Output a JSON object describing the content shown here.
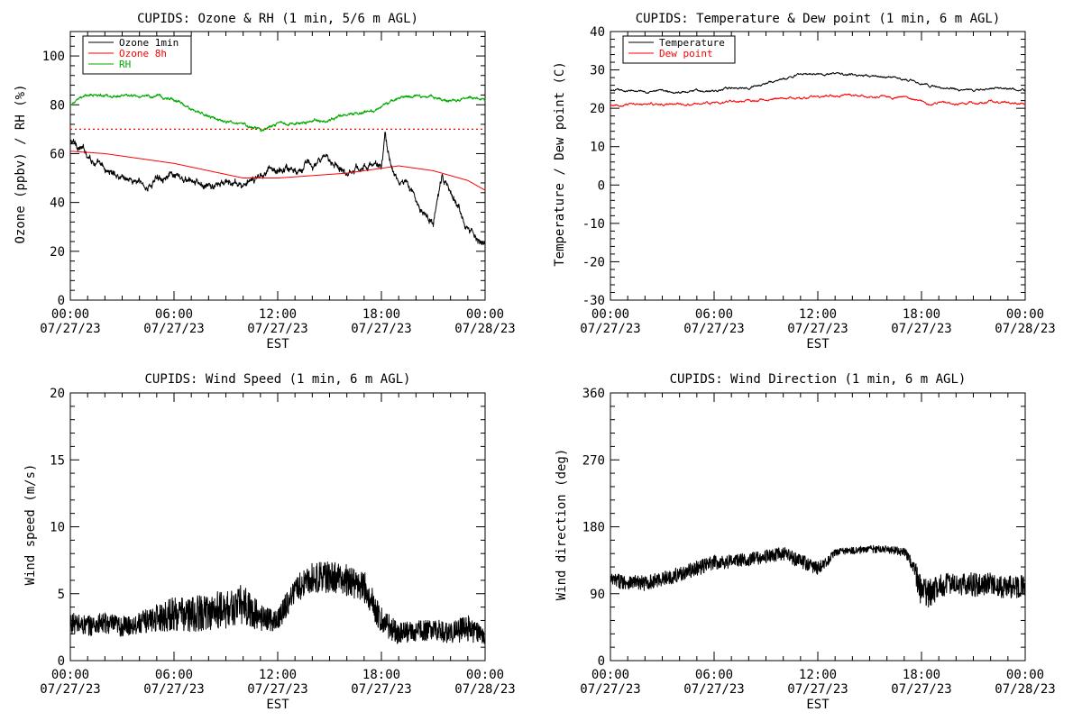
{
  "chart_data": [
    {
      "type": "line",
      "title": "CUPIDS: Ozone & RH (1 min, 5/6 m AGL)",
      "xlabel": "EST",
      "ylabel": "Ozone (ppbv) / RH (%)",
      "ylim": [
        0,
        110
      ],
      "yticks": [
        0,
        20,
        40,
        60,
        80,
        100
      ],
      "xticks": [
        {
          "time": "00:00",
          "date": "07/27/23"
        },
        {
          "time": "06:00",
          "date": "07/27/23"
        },
        {
          "time": "12:00",
          "date": "07/27/23"
        },
        {
          "time": "18:00",
          "date": "07/27/23"
        },
        {
          "time": "00:00",
          "date": "07/28/23"
        }
      ],
      "legend": "top-left",
      "reference_lines": [
        {
          "y": 70,
          "color": "#ff0000",
          "style": "dotted"
        }
      ],
      "series": [
        {
          "name": "Ozone 1min",
          "color": "#000000",
          "x": [
            0,
            0.5,
            1,
            1.5,
            2,
            3,
            4,
            4.5,
            5,
            5.5,
            6,
            7,
            8,
            9,
            10,
            10.5,
            11,
            11.5,
            12,
            12.5,
            13,
            13.5,
            14,
            15,
            16,
            17,
            18,
            18.2,
            18.5,
            19,
            19.5,
            20,
            20.5,
            21,
            21.5,
            22,
            22.5,
            23,
            23.5,
            24
          ],
          "y": [
            65,
            63,
            60,
            56,
            53,
            51,
            48,
            46,
            50,
            52,
            50,
            48,
            46,
            48,
            47,
            48,
            51,
            55,
            52,
            55,
            53,
            56,
            55,
            58,
            53,
            55,
            55,
            67,
            57,
            47,
            49,
            40,
            35,
            32,
            50,
            43,
            38,
            30,
            27,
            22
          ]
        },
        {
          "name": "Ozone 8h",
          "color": "#ff0000",
          "x": [
            0,
            2,
            4,
            6,
            8,
            10,
            12,
            14,
            16,
            18,
            19,
            20,
            21,
            22,
            23,
            24
          ],
          "y": [
            61,
            60,
            58,
            56,
            53,
            50,
            50,
            51,
            52,
            54,
            55,
            54,
            53,
            51,
            49,
            45
          ]
        },
        {
          "name": "RH",
          "color": "#00aa00",
          "x": [
            0,
            1,
            2,
            3,
            4,
            5,
            6,
            7,
            8,
            9,
            10,
            11,
            11.5,
            12,
            13,
            14,
            15,
            16,
            17,
            18,
            19,
            20,
            21,
            22,
            23,
            24
          ],
          "y": [
            80,
            84,
            84,
            84,
            83,
            84,
            82,
            78,
            75,
            73,
            72,
            70,
            71,
            72,
            72,
            73,
            74,
            76,
            77,
            79,
            83,
            84,
            83,
            82,
            83,
            82
          ]
        }
      ]
    },
    {
      "type": "line",
      "title": "CUPIDS: Temperature & Dew point (1 min, 6 m AGL)",
      "xlabel": "EST",
      "ylabel": "Temperature / Dew point (C)",
      "ylim": [
        -30,
        40
      ],
      "yticks": [
        -30,
        -20,
        -10,
        0,
        10,
        20,
        30,
        40
      ],
      "xticks": [
        {
          "time": "00:00",
          "date": "07/27/23"
        },
        {
          "time": "06:00",
          "date": "07/27/23"
        },
        {
          "time": "12:00",
          "date": "07/27/23"
        },
        {
          "time": "18:00",
          "date": "07/27/23"
        },
        {
          "time": "00:00",
          "date": "07/28/23"
        }
      ],
      "legend": "top-left",
      "series": [
        {
          "name": "Temperature",
          "color": "#000000",
          "x": [
            0,
            2,
            4,
            6,
            8,
            10,
            11,
            12,
            13,
            14,
            15,
            16,
            17,
            18,
            19,
            20,
            21,
            22,
            23,
            24
          ],
          "y": [
            24.5,
            24.5,
            24.3,
            24.6,
            25.6,
            27.5,
            28.8,
            29.2,
            29.0,
            28.8,
            28.5,
            28.0,
            27.6,
            26.5,
            25.5,
            25.0,
            24.6,
            25.2,
            25.1,
            24.5
          ]
        },
        {
          "name": "Dew point",
          "color": "#ff0000",
          "x": [
            0,
            2,
            4,
            6,
            8,
            10,
            12,
            14,
            16,
            17,
            18,
            18.5,
            19,
            20,
            21,
            22,
            23,
            24
          ],
          "y": [
            20.5,
            21.0,
            21.2,
            21.3,
            22.0,
            22.6,
            23.0,
            23.3,
            23.0,
            22.8,
            22.3,
            20.8,
            21.5,
            21.3,
            21.4,
            21.6,
            21.5,
            21.0
          ]
        }
      ]
    },
    {
      "type": "line",
      "title": "CUPIDS: Wind Speed (1 min, 6 m AGL)",
      "xlabel": "EST",
      "ylabel": "Wind speed (m/s)",
      "ylim": [
        0,
        20
      ],
      "yticks": [
        0,
        5,
        10,
        15,
        20
      ],
      "xticks": [
        {
          "time": "00:00",
          "date": "07/27/23"
        },
        {
          "time": "06:00",
          "date": "07/27/23"
        },
        {
          "time": "12:00",
          "date": "07/27/23"
        },
        {
          "time": "18:00",
          "date": "07/27/23"
        },
        {
          "time": "00:00",
          "date": "07/28/23"
        }
      ],
      "series": [
        {
          "color": "#000000",
          "x": [
            0,
            1,
            2,
            3,
            4,
            5,
            6,
            7,
            8,
            9,
            10,
            11,
            12,
            12.5,
            13,
            14,
            15,
            16,
            17,
            18,
            19,
            20,
            21,
            22,
            23,
            24
          ],
          "y": [
            2.8,
            2.6,
            2.8,
            2.5,
            2.8,
            3.2,
            3.5,
            3.4,
            3.7,
            3.8,
            4.2,
            3.2,
            3.0,
            4.2,
            5.3,
            6.2,
            6.2,
            6.0,
            5.5,
            3.0,
            2.0,
            2.2,
            2.3,
            2.1,
            2.4,
            1.8
          ],
          "amp": [
            0.8,
            0.8,
            0.8,
            0.8,
            0.8,
            1.0,
            1.3,
            1.3,
            1.4,
            1.4,
            1.5,
            1.0,
            0.8,
            1.0,
            1.0,
            1.1,
            1.2,
            1.2,
            1.2,
            1.0,
            0.8,
            0.8,
            0.8,
            0.8,
            1.0,
            0.6
          ]
        }
      ]
    },
    {
      "type": "line",
      "title": "CUPIDS: Wind Direction (1 min, 6 m AGL)",
      "xlabel": "EST",
      "ylabel": "Wind direction (deg)",
      "ylim": [
        0,
        360
      ],
      "yticks": [
        0,
        90,
        180,
        270,
        360
      ],
      "xticks": [
        {
          "time": "00:00",
          "date": "07/27/23"
        },
        {
          "time": "06:00",
          "date": "07/27/23"
        },
        {
          "time": "12:00",
          "date": "07/27/23"
        },
        {
          "time": "18:00",
          "date": "07/27/23"
        },
        {
          "time": "00:00",
          "date": "07/28/23"
        }
      ],
      "series": [
        {
          "color": "#000000",
          "x": [
            0,
            1,
            2,
            3,
            4,
            5,
            6,
            7,
            8,
            9,
            10,
            11,
            12,
            12.5,
            13,
            14,
            15,
            16,
            17,
            17.5,
            18,
            18.5,
            19,
            20,
            21,
            22,
            23,
            24
          ],
          "y": [
            108,
            106,
            104,
            110,
            116,
            124,
            132,
            134,
            136,
            140,
            144,
            134,
            124,
            132,
            146,
            148,
            150,
            150,
            146,
            130,
            88,
            90,
            100,
            105,
            102,
            103,
            98,
            100
          ],
          "amp": [
            10,
            10,
            10,
            10,
            10,
            10,
            10,
            10,
            9,
            9,
            9,
            10,
            9,
            7,
            5,
            5,
            5,
            5,
            6,
            12,
            22,
            20,
            16,
            16,
            16,
            15,
            16,
            15
          ]
        }
      ]
    }
  ]
}
